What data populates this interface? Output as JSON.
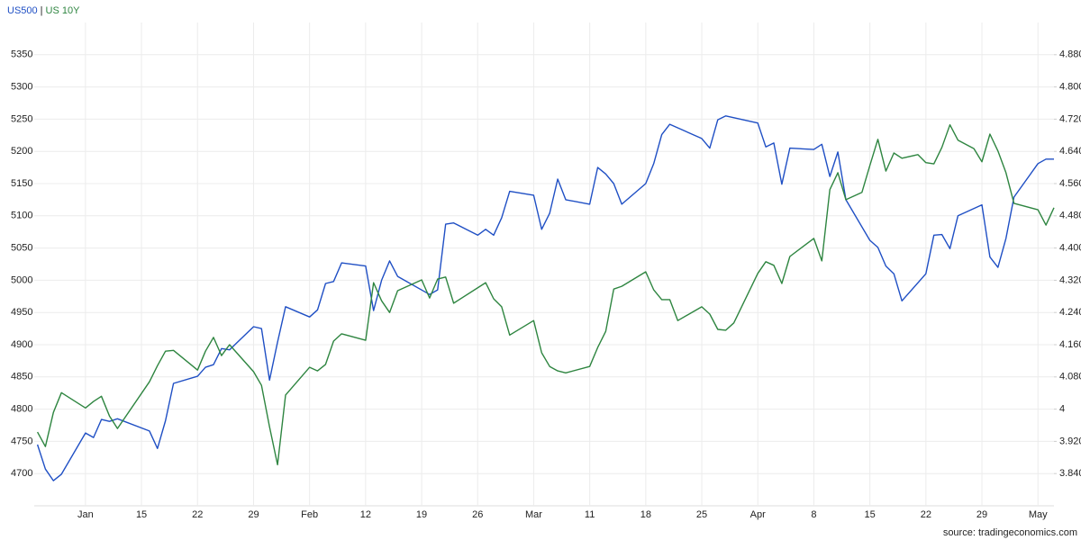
{
  "chart_data": {
    "type": "line",
    "legend": {
      "separator": "|"
    },
    "source": "source: tradingeconomics.com",
    "xlim": [
      1.6,
      129
    ],
    "xticks": [
      {
        "value": 8,
        "label": "Jan"
      },
      {
        "value": 15,
        "label": "15"
      },
      {
        "value": 22,
        "label": "22"
      },
      {
        "value": 29,
        "label": "29"
      },
      {
        "value": 36,
        "label": "Feb"
      },
      {
        "value": 43,
        "label": "12"
      },
      {
        "value": 50,
        "label": "19"
      },
      {
        "value": 57,
        "label": "26"
      },
      {
        "value": 64,
        "label": "Mar"
      },
      {
        "value": 71,
        "label": "11"
      },
      {
        "value": 78,
        "label": "18"
      },
      {
        "value": 85,
        "label": "25"
      },
      {
        "value": 92,
        "label": "Apr"
      },
      {
        "value": 99,
        "label": "8"
      },
      {
        "value": 106,
        "label": "15"
      },
      {
        "value": 113,
        "label": "22"
      },
      {
        "value": 120,
        "label": "29"
      },
      {
        "value": 127,
        "label": "May"
      }
    ],
    "ylim": [
      4650,
      5400
    ],
    "yticks": [
      4700,
      4750,
      4800,
      4850,
      4900,
      4950,
      5000,
      5050,
      5100,
      5150,
      5200,
      5250,
      5300,
      5350
    ],
    "y2lim": [
      3.76,
      4.96
    ],
    "y2ticks": [
      {
        "value": 3.84,
        "label": "3.840"
      },
      {
        "value": 3.92,
        "label": "3.920"
      },
      4,
      {
        "value": 4.08,
        "label": "4.080"
      },
      {
        "value": 4.16,
        "label": "4.160"
      },
      {
        "value": 4.24,
        "label": "4.240"
      },
      {
        "value": 4.32,
        "label": "4.320"
      },
      {
        "value": 4.4,
        "label": "4.400"
      },
      {
        "value": 4.48,
        "label": "4.480"
      },
      {
        "value": 4.56,
        "label": "4.560"
      },
      {
        "value": 4.64,
        "label": "4.640"
      },
      {
        "value": 4.72,
        "label": "4.720"
      },
      {
        "value": 4.8,
        "label": "4.800"
      },
      {
        "value": 4.88,
        "label": "4.880"
      }
    ],
    "grid": true,
    "series": [
      {
        "name": "US500",
        "color": "#1f4fc4",
        "x": [
          2,
          3,
          4,
          5,
          8,
          9,
          10,
          11,
          12,
          16,
          17,
          18,
          19,
          22,
          23,
          24,
          25,
          26,
          29,
          30,
          31,
          32,
          33,
          36,
          37,
          38,
          39,
          40,
          43,
          44,
          45,
          46,
          47,
          51,
          52,
          53,
          54,
          57,
          58,
          59,
          60,
          61,
          64,
          65,
          66,
          67,
          68,
          71,
          72,
          73,
          74,
          75,
          78,
          79,
          80,
          81,
          85,
          86,
          87,
          88,
          92,
          93,
          94,
          95,
          96,
          99,
          100,
          101,
          102,
          103,
          106,
          107,
          108,
          109,
          110,
          113,
          114,
          115,
          116,
          117,
          120,
          121,
          122,
          123,
          124,
          127,
          128,
          129
        ],
        "values": [
          4745,
          4707,
          4689,
          4699,
          4763,
          4756,
          4784,
          4781,
          4785,
          4766,
          4739,
          4782,
          4840,
          4851,
          4865,
          4869,
          4894,
          4892,
          4928,
          4925,
          4845,
          4904,
          4959,
          4943,
          4954,
          4995,
          4998,
          5027,
          5022,
          4953,
          5000,
          5030,
          5006,
          4978,
          4985,
          5087,
          5089,
          5070,
          5079,
          5070,
          5097,
          5138,
          5132,
          5079,
          5104,
          5157,
          5125,
          5118,
          5175,
          5165,
          5150,
          5118,
          5150,
          5181,
          5226,
          5242,
          5220,
          5205,
          5249,
          5255,
          5244,
          5207,
          5213,
          5149,
          5205,
          5203,
          5211,
          5161,
          5199,
          5125,
          5062,
          5051,
          5022,
          5010,
          4968,
          5010,
          5070,
          5071,
          5049,
          5100,
          5117,
          5036,
          5020,
          5065,
          5129,
          5181,
          5188,
          5188
        ]
      },
      {
        "name": "US 10Y",
        "color": "#2e8540",
        "axis": "y2",
        "x": [
          2,
          3,
          4,
          5,
          8,
          9,
          10,
          11,
          12,
          16,
          17,
          18,
          19,
          22,
          23,
          24,
          25,
          26,
          29,
          30,
          31,
          32,
          33,
          36,
          37,
          38,
          39,
          40,
          43,
          44,
          45,
          46,
          47,
          50,
          51,
          52,
          53,
          54,
          58,
          59,
          60,
          61,
          64,
          65,
          66,
          67,
          68,
          71,
          72,
          73,
          74,
          75,
          78,
          79,
          80,
          81,
          82,
          85,
          86,
          87,
          88,
          89,
          92,
          93,
          94,
          95,
          96,
          99,
          100,
          101,
          102,
          103,
          105,
          106,
          107,
          108,
          109,
          110,
          112,
          113,
          114,
          115,
          116,
          117,
          119,
          120,
          121,
          122,
          123,
          124,
          127,
          128,
          129
        ],
        "values": [
          3.943,
          3.907,
          3.992,
          4.041,
          4.003,
          4.019,
          4.032,
          3.983,
          3.952,
          4.068,
          4.108,
          4.144,
          4.146,
          4.097,
          4.144,
          4.178,
          4.133,
          4.16,
          4.093,
          4.059,
          3.956,
          3.862,
          4.035,
          4.104,
          4.095,
          4.111,
          4.169,
          4.187,
          4.171,
          4.314,
          4.269,
          4.24,
          4.294,
          4.321,
          4.276,
          4.323,
          4.328,
          4.263,
          4.314,
          4.274,
          4.254,
          4.184,
          4.22,
          4.14,
          4.106,
          4.095,
          4.09,
          4.106,
          4.153,
          4.193,
          4.298,
          4.305,
          4.341,
          4.296,
          4.272,
          4.272,
          4.22,
          4.254,
          4.236,
          4.198,
          4.196,
          4.214,
          4.337,
          4.366,
          4.357,
          4.312,
          4.379,
          4.424,
          4.368,
          4.545,
          4.587,
          4.52,
          4.538,
          4.605,
          4.67,
          4.591,
          4.636,
          4.623,
          4.632,
          4.612,
          4.609,
          4.65,
          4.706,
          4.668,
          4.647,
          4.614,
          4.683,
          4.641,
          4.587,
          4.511,
          4.495,
          4.457,
          4.5
        ]
      }
    ]
  }
}
